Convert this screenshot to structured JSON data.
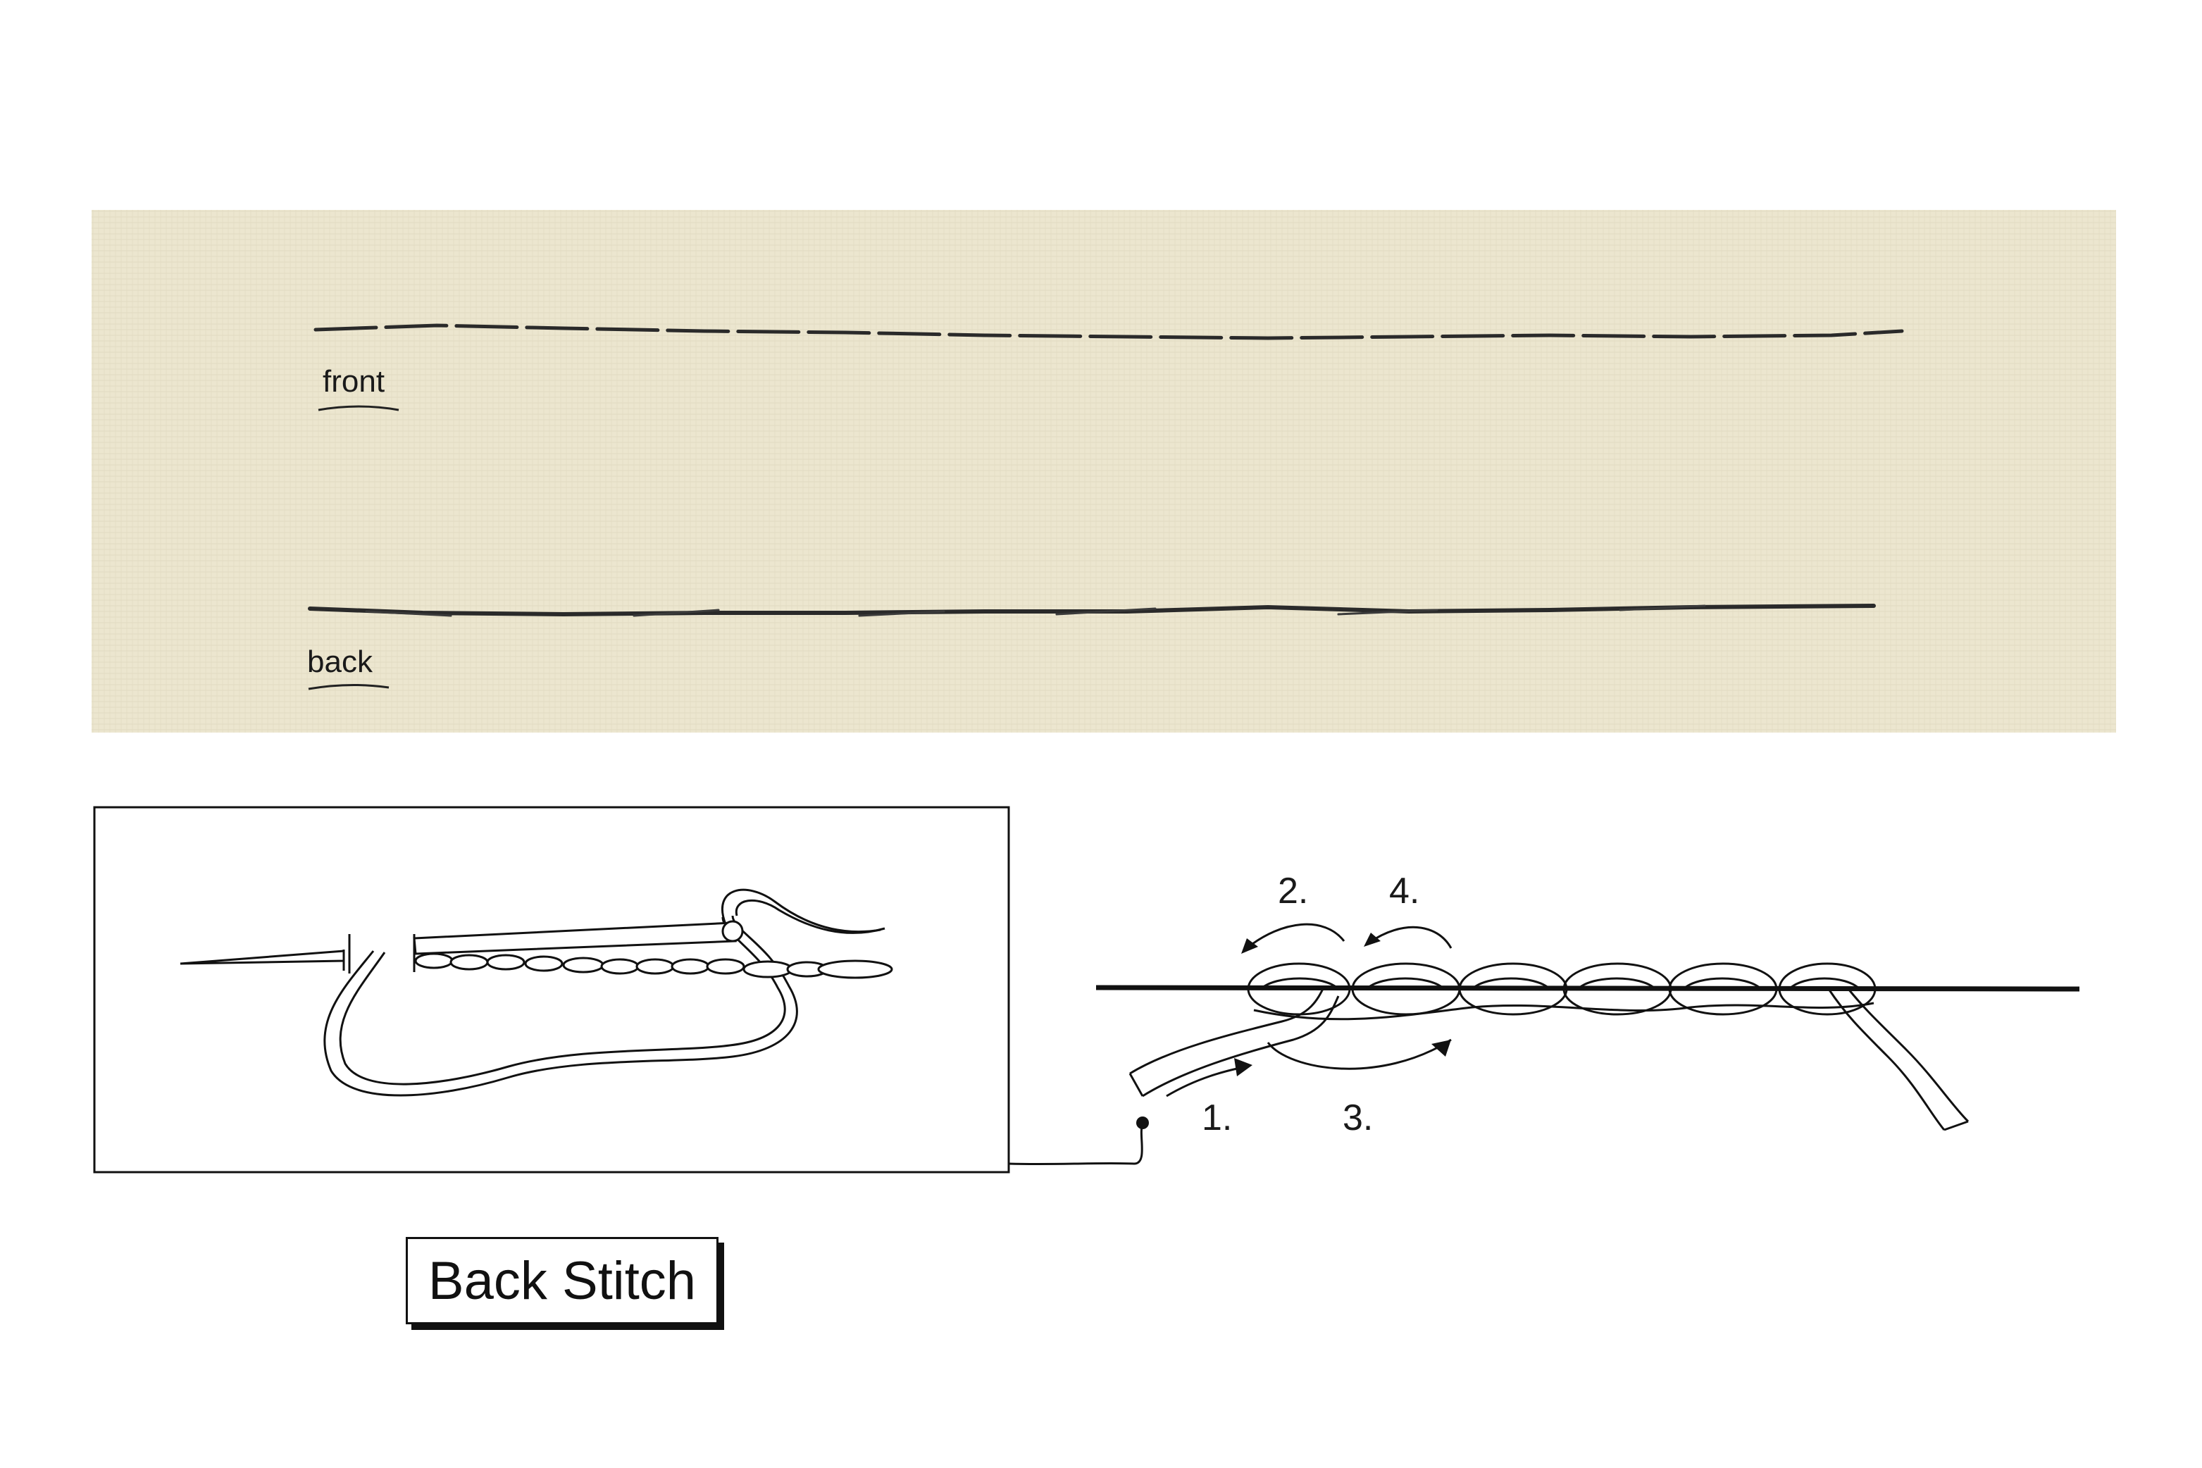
{
  "photo": {
    "front_label": "front",
    "back_label": "back",
    "fabric_color": "#ece6cf",
    "thread_color": "#2a2a2a"
  },
  "diagram": {
    "step_labels": [
      "1.",
      "2.",
      "3.",
      "4."
    ]
  },
  "title": "Back Stitch"
}
